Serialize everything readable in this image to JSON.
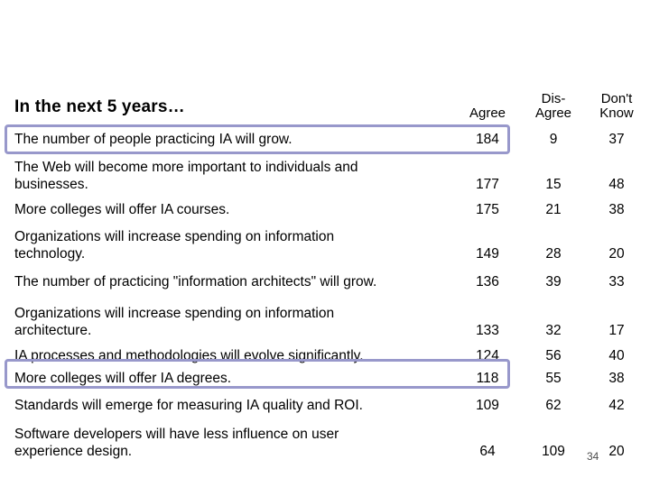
{
  "page": {
    "title": "In the next 5 years…",
    "page_number": "34"
  },
  "colors": {
    "highlight_border": "#9898cb",
    "text": "#000000",
    "page_number_gray": "#4d4d4d",
    "background": "#ffffff"
  },
  "table": {
    "columns": [
      "Agree",
      "Dis-\nAgree",
      "Don't\nKnow"
    ],
    "rows": [
      {
        "statement": "The number of people practicing IA will grow.",
        "agree": "184",
        "disagree": "9",
        "dont_know": "37",
        "highlighted": true
      },
      {
        "statement": "The Web will become more important to individuals and\nbusinesses.",
        "agree": "177",
        "disagree": "15",
        "dont_know": "48",
        "highlighted": false
      },
      {
        "statement": "More colleges will offer IA courses.",
        "agree": "175",
        "disagree": "21",
        "dont_know": "38",
        "highlighted": false
      },
      {
        "statement": "Organizations will increase spending on information\ntechnology.",
        "agree": "149",
        "disagree": "28",
        "dont_know": "20",
        "highlighted": false
      },
      {
        "statement": "The number of practicing \"information architects\" will grow.",
        "agree": "136",
        "disagree": "39",
        "dont_know": "33",
        "highlighted": false
      },
      {
        "statement": "Organizations will increase spending on information\narchitecture.",
        "agree": "133",
        "disagree": "32",
        "dont_know": "17",
        "highlighted": false
      },
      {
        "statement": "IA processes and methodologies will evolve significantly.",
        "agree": "124",
        "disagree": "56",
        "dont_know": "40",
        "highlighted": false
      },
      {
        "statement": "More colleges will offer IA degrees.",
        "agree": "118",
        "disagree": "55",
        "dont_know": "38",
        "highlighted": true
      },
      {
        "statement": "Standards will emerge for measuring IA quality and ROI.",
        "agree": "109",
        "disagree": "62",
        "dont_know": "42",
        "highlighted": false
      },
      {
        "statement": "Software developers will have less influence on user\nexperience design.",
        "agree": "64",
        "disagree": "109",
        "dont_know": "20",
        "highlighted": false
      }
    ]
  }
}
